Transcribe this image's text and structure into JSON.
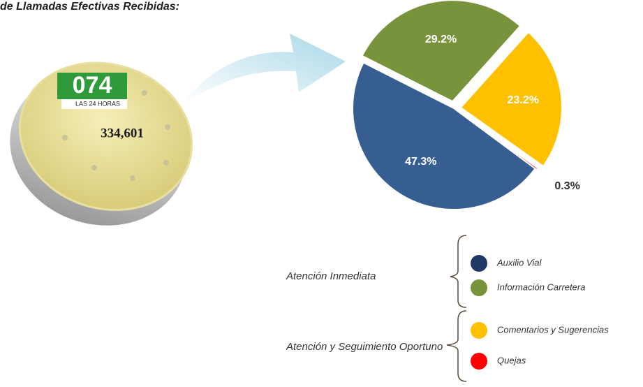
{
  "chart_data": {
    "type": "pie",
    "title": "de Llamadas Efectivas Recibidas:",
    "badge": {
      "number": "074",
      "tagline": "LAS 24 HORAS",
      "total": "334,601"
    },
    "categories": [
      "Auxilio Vial",
      "Información Carretera",
      "Comentarios y Sugerencias",
      "Quejas"
    ],
    "values": [
      47.3,
      29.2,
      23.2,
      0.3
    ],
    "value_labels": [
      "47.3%",
      "29.2%",
      "23.2%",
      "0.3%"
    ],
    "colors": [
      "#375e91",
      "#77933c",
      "#ffc000",
      "#ff0000"
    ],
    "groups": [
      "Atención Inmediata",
      "Atención y Seguimiento Oportuno"
    ]
  }
}
